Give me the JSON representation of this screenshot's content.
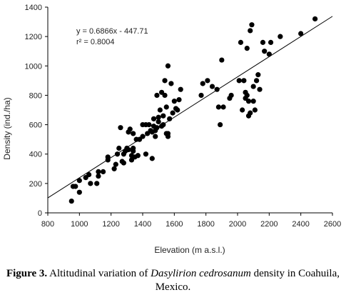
{
  "chart_data": {
    "type": "scatter",
    "xlabel": "Elevation (m a.s.l.)",
    "ylabel": "Density (ind./ha)",
    "xlim": [
      800,
      2600
    ],
    "ylim": [
      0,
      1400
    ],
    "x_ticks": [
      "800",
      "1000",
      "1200",
      "1400",
      "1600",
      "1800",
      "2000",
      "2200",
      "2400",
      "2600"
    ],
    "y_ticks": [
      "0",
      "200",
      "400",
      "600",
      "800",
      "1000",
      "1200",
      "1400"
    ],
    "grid": false,
    "annotations": {
      "equation": "y = 0.6866x - 447.71",
      "r2_label": "r² = 0.8004"
    },
    "trendline": {
      "slope": 0.6866,
      "intercept": -447.71
    },
    "points": [
      [
        950,
        80
      ],
      [
        960,
        180
      ],
      [
        975,
        180
      ],
      [
        1000,
        140
      ],
      [
        1000,
        220
      ],
      [
        1040,
        240
      ],
      [
        1060,
        260
      ],
      [
        1070,
        200
      ],
      [
        1110,
        200
      ],
      [
        1120,
        250
      ],
      [
        1120,
        280
      ],
      [
        1150,
        280
      ],
      [
        1180,
        360
      ],
      [
        1180,
        380
      ],
      [
        1220,
        300
      ],
      [
        1230,
        330
      ],
      [
        1240,
        400
      ],
      [
        1250,
        440
      ],
      [
        1260,
        580
      ],
      [
        1270,
        350
      ],
      [
        1280,
        340
      ],
      [
        1280,
        400
      ],
      [
        1290,
        420
      ],
      [
        1300,
        440
      ],
      [
        1310,
        430
      ],
      [
        1310,
        550
      ],
      [
        1320,
        570
      ],
      [
        1330,
        360
      ],
      [
        1330,
        390
      ],
      [
        1340,
        440
      ],
      [
        1340,
        420
      ],
      [
        1340,
        540
      ],
      [
        1350,
        380
      ],
      [
        1360,
        500
      ],
      [
        1370,
        390
      ],
      [
        1380,
        500
      ],
      [
        1400,
        520
      ],
      [
        1400,
        600
      ],
      [
        1420,
        400
      ],
      [
        1420,
        600
      ],
      [
        1430,
        540
      ],
      [
        1440,
        600
      ],
      [
        1450,
        560
      ],
      [
        1460,
        550
      ],
      [
        1460,
        370
      ],
      [
        1470,
        590
      ],
      [
        1470,
        640
      ],
      [
        1480,
        520
      ],
      [
        1480,
        560
      ],
      [
        1490,
        580
      ],
      [
        1490,
        800
      ],
      [
        1500,
        620
      ],
      [
        1500,
        650
      ],
      [
        1510,
        700
      ],
      [
        1520,
        820
      ],
      [
        1520,
        590
      ],
      [
        1530,
        660
      ],
      [
        1530,
        600
      ],
      [
        1540,
        800
      ],
      [
        1540,
        900
      ],
      [
        1550,
        540
      ],
      [
        1550,
        720
      ],
      [
        1560,
        1000
      ],
      [
        1560,
        540
      ],
      [
        1560,
        520
      ],
      [
        1570,
        640
      ],
      [
        1580,
        880
      ],
      [
        1590,
        680
      ],
      [
        1600,
        760
      ],
      [
        1610,
        710
      ],
      [
        1620,
        700
      ],
      [
        1630,
        770
      ],
      [
        1640,
        840
      ],
      [
        1770,
        800
      ],
      [
        1780,
        880
      ],
      [
        1810,
        900
      ],
      [
        1840,
        860
      ],
      [
        1870,
        840
      ],
      [
        1880,
        720
      ],
      [
        1890,
        600
      ],
      [
        1900,
        1040
      ],
      [
        1910,
        720
      ],
      [
        1950,
        780
      ],
      [
        1960,
        800
      ],
      [
        2010,
        900
      ],
      [
        2020,
        1160
      ],
      [
        2030,
        700
      ],
      [
        2040,
        900
      ],
      [
        2050,
        780
      ],
      [
        2050,
        820
      ],
      [
        2060,
        1120
      ],
      [
        2060,
        800
      ],
      [
        2070,
        760
      ],
      [
        2070,
        660
      ],
      [
        2080,
        1240
      ],
      [
        2080,
        680
      ],
      [
        2090,
        1280
      ],
      [
        2100,
        860
      ],
      [
        2100,
        760
      ],
      [
        2110,
        700
      ],
      [
        2120,
        900
      ],
      [
        2130,
        940
      ],
      [
        2140,
        840
      ],
      [
        2160,
        1160
      ],
      [
        2170,
        1100
      ],
      [
        2200,
        1080
      ],
      [
        2210,
        1160
      ],
      [
        2270,
        1200
      ],
      [
        2400,
        1220
      ],
      [
        2490,
        1320
      ]
    ]
  },
  "caption": {
    "label": "Figure 3.",
    "text_before": " Altitudinal variation of ",
    "species": "Dasylirion cedrosanum",
    "text_after": " density in Coahuila, Mexico."
  }
}
